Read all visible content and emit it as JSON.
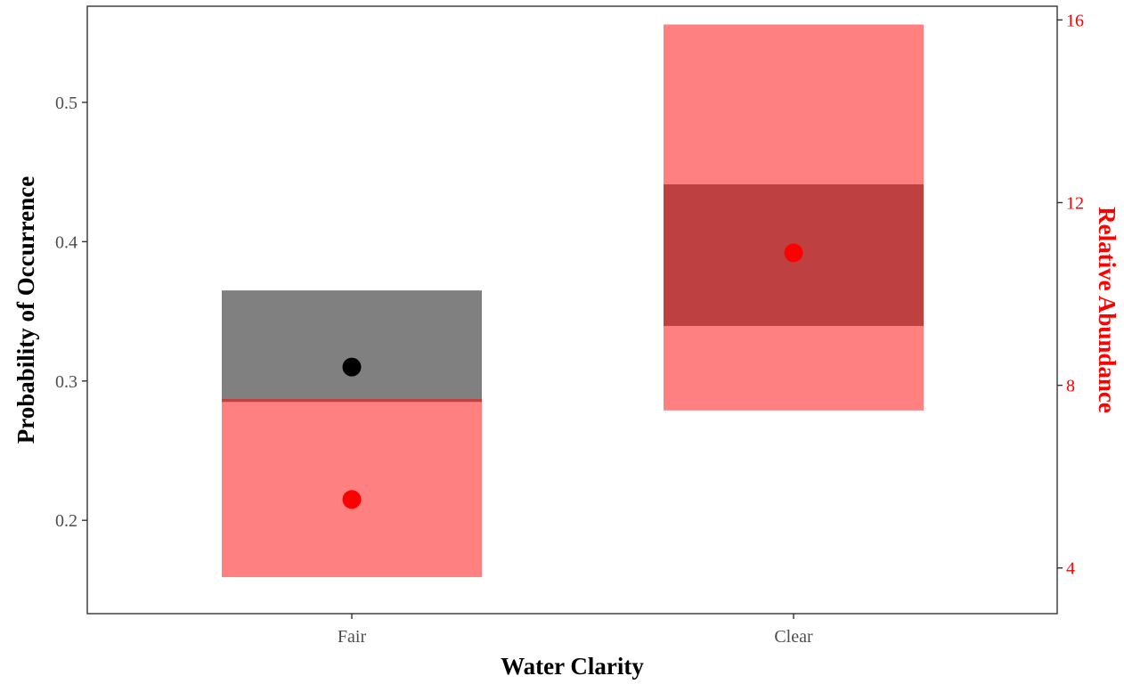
{
  "chart_data": {
    "type": "crossbar-dual-axis",
    "categories": [
      "Fair",
      "Clear"
    ],
    "xlabel": "Water Clarity",
    "ylabel_left": "Probability of Occurrence",
    "ylabel_right": "Relative Abundance",
    "ylim_left": [
      0.133,
      0.569
    ],
    "ylim_right": [
      3.0,
      16.3
    ],
    "yticks_left": [
      0.2,
      0.3,
      0.4,
      0.5
    ],
    "yticks_right": [
      4,
      8,
      12,
      16
    ],
    "grid": false,
    "colors": {
      "left_axis_text": "#000000",
      "right_axis_text": "#ff0000",
      "occurrence_box": "#808080",
      "occurrence_point": "#000000",
      "abundance_box": "#ff8080",
      "abundance_point": "#ff0000",
      "overlap": "#bf4040",
      "panel_border": "#333333",
      "tick_text": "#4d4d4d"
    },
    "series": [
      {
        "axis": "left",
        "points": [
          {
            "category": "Fair",
            "value": 0.31,
            "lower": 0.285,
            "upper": 0.365
          }
        ]
      },
      {
        "axis": "right",
        "points": [
          {
            "category": "Fair",
            "value": 5.5,
            "lower": 3.8,
            "upper": 7.7
          },
          {
            "category": "Clear",
            "value": 10.9,
            "lower": 7.45,
            "upper": 15.9
          }
        ]
      }
    ]
  }
}
